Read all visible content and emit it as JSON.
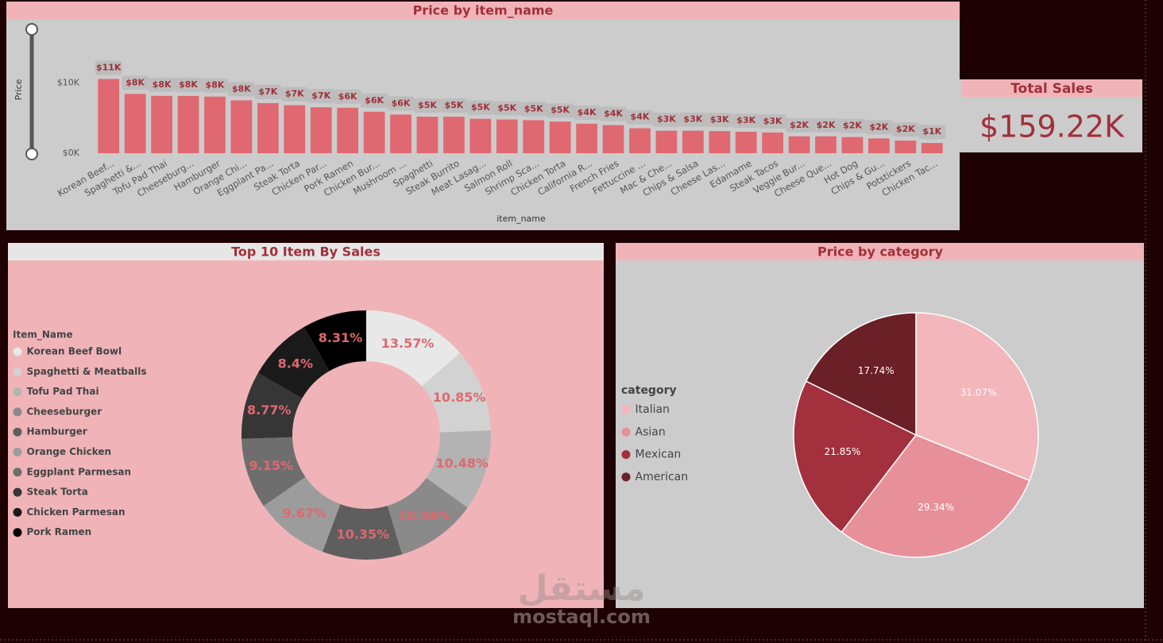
{
  "chart_data": [
    {
      "type": "bar",
      "title": "Price by item_name",
      "x_label": "item_name",
      "y_label": "Price",
      "categories": [
        "Korean Beef...",
        "Spaghetti &...",
        "Tofu Pad Thai",
        "Cheeseburg...",
        "Hamburger",
        "Orange Chi...",
        "Eggplant Pa...",
        "Steak Torta",
        "Chicken Par...",
        "Pork Ramen",
        "Chicken Bur...",
        "Mushroom ...",
        "Spaghetti",
        "Steak Burrito",
        "Meat Lasag...",
        "Salmon Roll",
        "Shrimp Sca...",
        "Chicken Torta",
        "California R...",
        "French Fries",
        "Fettuccine ...",
        "Mac & Che...",
        "Chips & Salsa",
        "Cheese Las...",
        "Edamame",
        "Steak Tacos",
        "Veggie Bur...",
        "Cheese Que...",
        "Hot Dog",
        "Chips & Gu...",
        "Potstickers",
        "Chicken Tac..."
      ],
      "values": [
        10570,
        8450,
        8160,
        8150,
        8060,
        7530,
        7130,
        6830,
        6540,
        6470,
        5900,
        5500,
        5200,
        5200,
        4900,
        4800,
        4700,
        4500,
        4200,
        4000,
        3550,
        3200,
        3200,
        3150,
        3050,
        2950,
        2400,
        2400,
        2300,
        2100,
        1800,
        1450
      ],
      "value_labels": [
        "$11K",
        "$8K",
        "$8K",
        "$8K",
        "$8K",
        "$8K",
        "$7K",
        "$7K",
        "$7K",
        "$6K",
        "$6K",
        "$6K",
        "$5K",
        "$5K",
        "$5K",
        "$5K",
        "$5K",
        "$5K",
        "$4K",
        "$4K",
        "$4K",
        "$3K",
        "$3K",
        "$3K",
        "$3K",
        "$3K",
        "$2K",
        "$2K",
        "$2K",
        "$2K",
        "$2K",
        "$1K"
      ],
      "color": "#e06870",
      "ylim": [
        0,
        13000
      ],
      "yticks": [
        {
          "value": 0,
          "label": "$0K"
        },
        {
          "value": 10000,
          "label": "$10K"
        }
      ],
      "grid": false
    },
    {
      "type": "donut",
      "title": "Top 10 Item By Sales",
      "legend_title": "Item_Name",
      "categories": [
        "Korean Beef Bowl",
        "Spaghetti & Meatballs",
        "Tofu Pad Thai",
        "Cheeseburger",
        "Hamburger",
        "Orange Chicken",
        "Eggplant Parmesan",
        "Steak Torta",
        "Chicken Parmesan",
        "Pork Ramen"
      ],
      "values": [
        13.57,
        10.85,
        10.48,
        10.46,
        10.35,
        9.67,
        9.15,
        8.77,
        8.4,
        8.31
      ],
      "value_labels": [
        "13.57%",
        "10.85%",
        "10.48%",
        "10.46%",
        "10.35%",
        "9.67%",
        "9.15%",
        "8.77%",
        "8.4%",
        "8.31%"
      ],
      "colors": [
        "#e8e8e8",
        "#d2d2d2",
        "#b3b3b3",
        "#8a8a8a",
        "#5e5e5e",
        "#9c9c9c",
        "#6e6e6e",
        "#363636",
        "#1a1a1a",
        "#000000"
      ],
      "legend": "left"
    },
    {
      "type": "pie",
      "title": "Price by category",
      "legend_title": "category",
      "categories": [
        "Italian",
        "Asian",
        "Mexican",
        "American"
      ],
      "values": [
        31.07,
        29.34,
        21.85,
        17.74
      ],
      "value_labels": [
        "31.07%",
        "29.34%",
        "21.85%",
        "17.74%"
      ],
      "colors": [
        "#f3b6bb",
        "#e8909a",
        "#a3303d",
        "#6b1f26"
      ],
      "legend": "left"
    }
  ],
  "card": {
    "title": "Total Sales",
    "value": "$159.22K"
  },
  "watermark": {
    "arabic": "مستقل",
    "latin": "mostaql.com"
  }
}
